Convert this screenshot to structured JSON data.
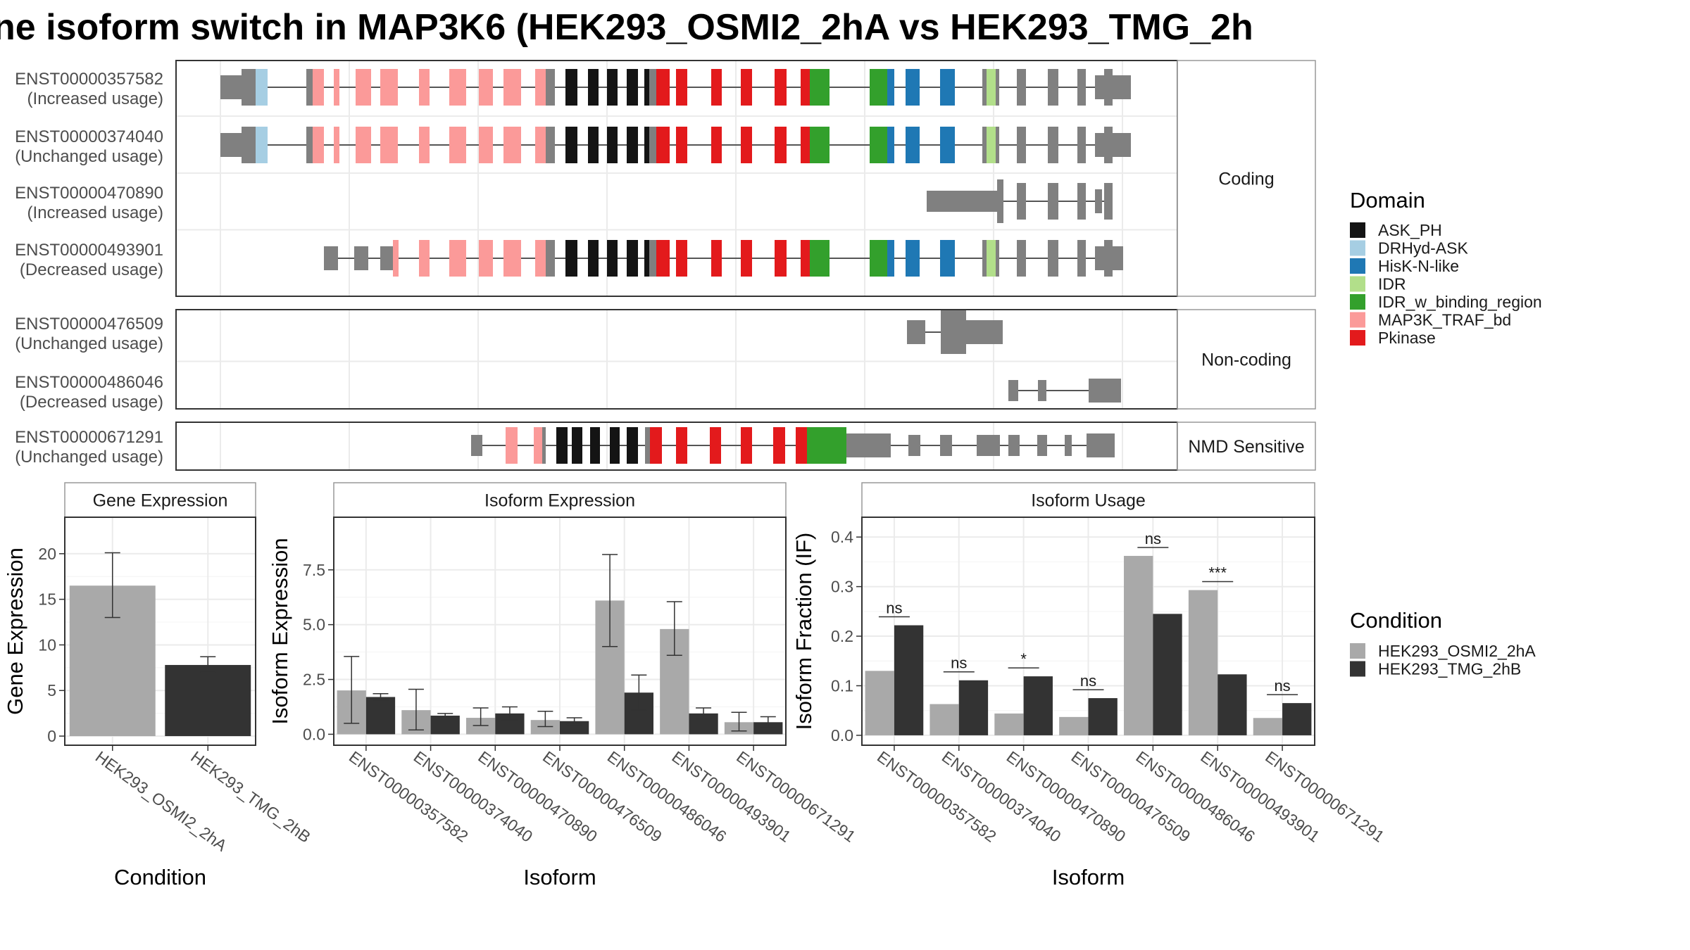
{
  "title": "ne isoform switch in MAP3K6 (HEK293_OSMI2_2hA vs HEK293_TMG_2h",
  "colors": {
    "exon": "#808080",
    "intron": "#555555",
    "cond_A": "#A9A9A9",
    "cond_B": "#333333",
    "domains": {
      "ASK_PH": "#141414",
      "DRHyd-ASK": "#A6CEE3",
      "HisK-N-like": "#1F78B4",
      "IDR": "#B2DF8A",
      "IDR_w_binding_region": "#33A02C",
      "MAP3K_TRAF_bd": "#FB9A99",
      "Pkinase": "#E31A1C"
    }
  },
  "structure": {
    "groups": [
      {
        "label": "Coding",
        "isoforms": [
          {
            "id": "ENST00000357582",
            "usage": "(Increased usage)",
            "model": "full"
          },
          {
            "id": "ENST00000374040",
            "usage": "(Unchanged usage)",
            "model": "full"
          },
          {
            "id": "ENST00000470890",
            "usage": "(Increased usage)",
            "model": "short3"
          },
          {
            "id": "ENST00000493901",
            "usage": "(Decreased usage)",
            "model": "alt5"
          }
        ]
      },
      {
        "label": "Non-coding",
        "isoforms": [
          {
            "id": "ENST00000476509",
            "usage": "(Unchanged usage)",
            "model": "nc1"
          },
          {
            "id": "ENST00000486046",
            "usage": "(Decreased usage)",
            "model": "nc2"
          }
        ]
      },
      {
        "label": "NMD Sensitive",
        "isoforms": [
          {
            "id": "ENST00000671291",
            "usage": "(Unchanged usage)",
            "model": "nmd"
          }
        ]
      }
    ]
  },
  "legend_domain": {
    "title": "Domain",
    "items": [
      "ASK_PH",
      "DRHyd-ASK",
      "HisK-N-like",
      "IDR",
      "IDR_w_binding_region",
      "MAP3K_TRAF_bd",
      "Pkinase"
    ]
  },
  "legend_condition": {
    "title": "Condition",
    "items": [
      "HEK293_OSMI2_2hA",
      "HEK293_TMG_2hB"
    ]
  },
  "chart_data": [
    {
      "type": "bar",
      "title": "Gene Expression",
      "xlabel": "Condition",
      "ylabel": "Gene Expression",
      "categories": [
        "HEK293_OSMI2_2hA",
        "HEK293_TMG_2hB"
      ],
      "values": [
        16.5,
        7.8
      ],
      "error_low": [
        13.0,
        7.0
      ],
      "error_high": [
        20.1,
        8.7
      ],
      "ylim": [
        -1,
        24
      ],
      "yticks": [
        0,
        5,
        10,
        15,
        20
      ],
      "yticklabels": [
        "0",
        "5",
        "10",
        "15",
        "20"
      ]
    },
    {
      "type": "bar",
      "title": "Isoform Expression",
      "xlabel": "Isoform",
      "ylabel": "Isoform Expression",
      "categories": [
        "ENST00000357582",
        "ENST00000374040",
        "ENST00000470890",
        "ENST00000476509",
        "ENST00000486046",
        "ENST00000493901",
        "ENST00000671291"
      ],
      "series": [
        {
          "values": [
            2.0,
            1.1,
            0.75,
            0.65,
            6.1,
            4.8,
            0.55
          ],
          "error_low": [
            0.5,
            0.2,
            0.4,
            0.35,
            4.0,
            3.6,
            0.15
          ],
          "error_high": [
            3.55,
            2.05,
            1.2,
            1.05,
            8.2,
            6.05,
            1.0
          ]
        },
        {
          "values": [
            1.7,
            0.85,
            0.95,
            0.6,
            1.9,
            0.95,
            0.55
          ],
          "error_low": [
            1.55,
            0.75,
            0.65,
            0.45,
            1.1,
            0.7,
            0.3
          ],
          "error_high": [
            1.85,
            0.95,
            1.25,
            0.75,
            2.7,
            1.2,
            0.8
          ]
        }
      ],
      "ylim": [
        -0.5,
        9.9
      ],
      "yticks": [
        0,
        2.5,
        5,
        7.5
      ],
      "yticklabels": [
        "0.0",
        "2.5",
        "5.0",
        "7.5"
      ]
    },
    {
      "type": "bar",
      "title": "Isoform Usage",
      "xlabel": "Isoform",
      "ylabel": "Isoform Fraction (IF)",
      "categories": [
        "ENST00000357582",
        "ENST00000374040",
        "ENST00000470890",
        "ENST00000476509",
        "ENST00000486046",
        "ENST00000493901",
        "ENST00000671291"
      ],
      "series": [
        {
          "values": [
            0.13,
            0.063,
            0.044,
            0.037,
            0.362,
            0.293,
            0.035
          ]
        },
        {
          "values": [
            0.222,
            0.111,
            0.119,
            0.075,
            0.245,
            0.123,
            0.065
          ]
        }
      ],
      "significance": [
        "ns",
        "ns",
        "*",
        "ns",
        "ns",
        "***",
        "ns"
      ],
      "ylim": [
        -0.02,
        0.44
      ],
      "yticks": [
        0,
        0.1,
        0.2,
        0.3,
        0.4
      ],
      "yticklabels": [
        "0.0",
        "0.1",
        "0.2",
        "0.3",
        "0.4"
      ]
    }
  ]
}
